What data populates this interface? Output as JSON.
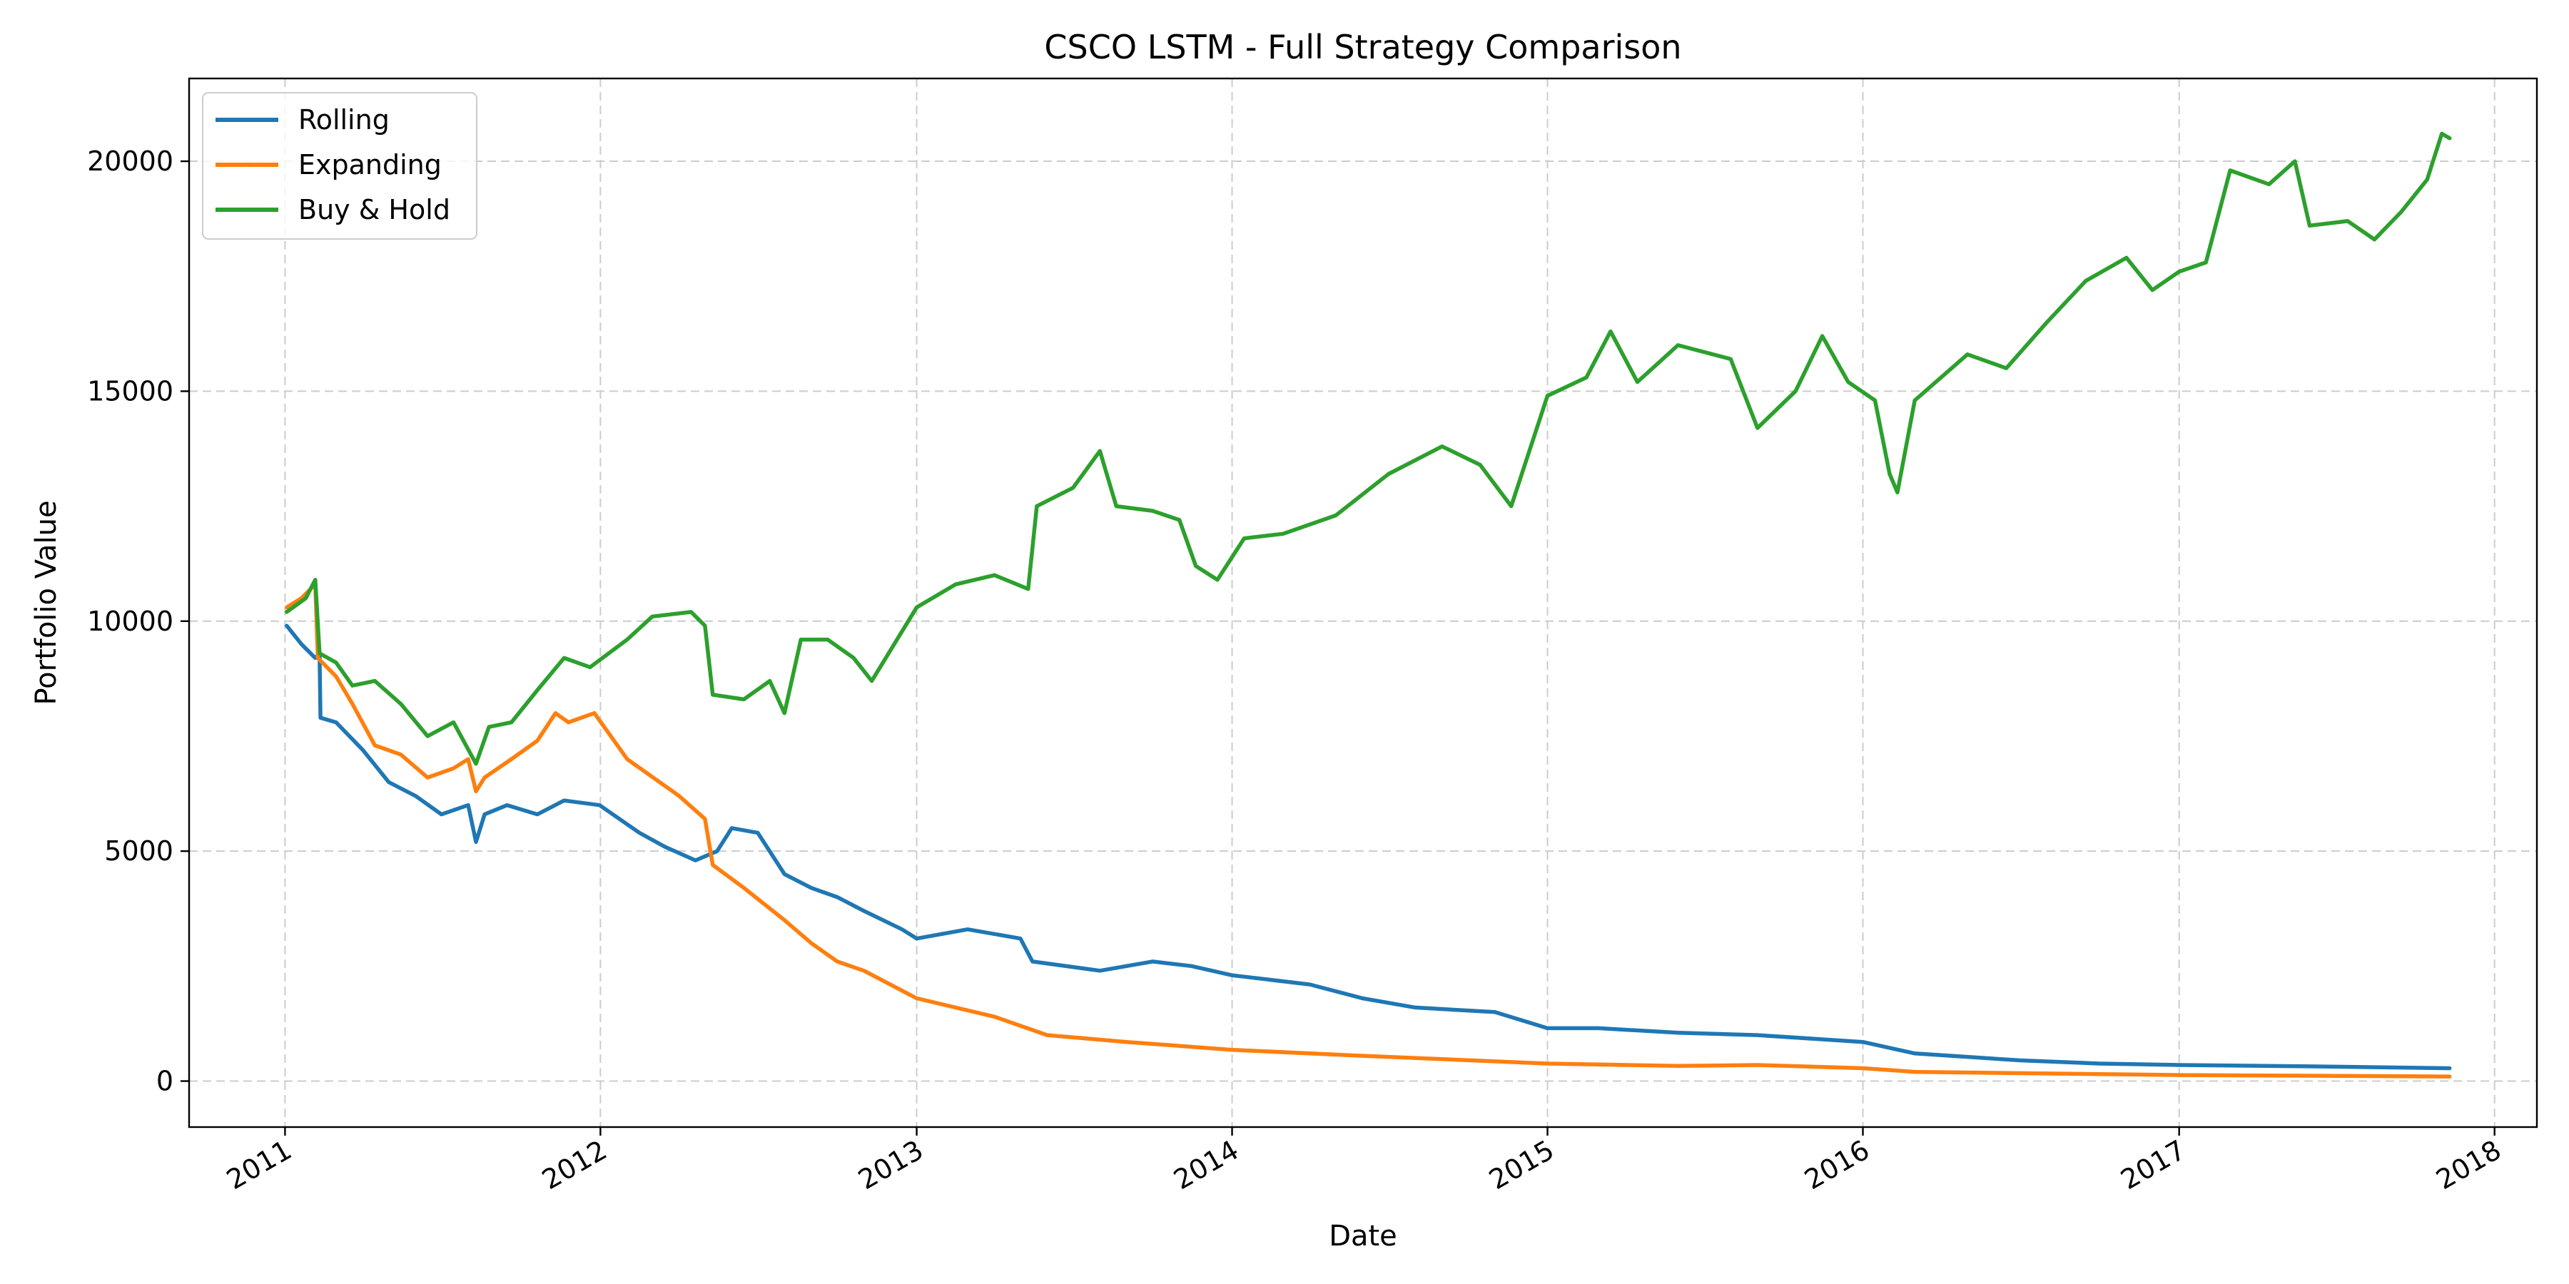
{
  "chart_data": {
    "type": "line",
    "title": "CSCO LSTM - Full Strategy Comparison",
    "xlabel": "Date",
    "ylabel": "Portfolio Value",
    "x_ticks": [
      "2011",
      "2012",
      "2013",
      "2014",
      "2015",
      "2016",
      "2017",
      "2018"
    ],
    "y_ticks": [
      0,
      5000,
      10000,
      15000,
      20000
    ],
    "xlim": [
      "2010-09-12",
      "2018-02-19"
    ],
    "ylim": [
      -1000,
      21800
    ],
    "grid": true,
    "legend_position": "upper-left",
    "series": [
      {
        "name": "Rolling",
        "color": "#1f77b4",
        "points": [
          [
            "2011-01-03",
            9900
          ],
          [
            "2011-01-20",
            9500
          ],
          [
            "2011-02-05",
            9200
          ],
          [
            "2011-02-10",
            9300
          ],
          [
            "2011-02-11",
            7900
          ],
          [
            "2011-03-01",
            7800
          ],
          [
            "2011-04-01",
            7200
          ],
          [
            "2011-05-01",
            6500
          ],
          [
            "2011-06-01",
            6200
          ],
          [
            "2011-07-01",
            5800
          ],
          [
            "2011-08-01",
            6000
          ],
          [
            "2011-08-10",
            5200
          ],
          [
            "2011-08-20",
            5800
          ],
          [
            "2011-09-15",
            6000
          ],
          [
            "2011-10-20",
            5800
          ],
          [
            "2011-11-20",
            6100
          ],
          [
            "2011-12-31",
            6000
          ],
          [
            "2012-02-15",
            5400
          ],
          [
            "2012-03-15",
            5100
          ],
          [
            "2012-04-20",
            4800
          ],
          [
            "2012-05-15",
            5000
          ],
          [
            "2012-06-01",
            5500
          ],
          [
            "2012-07-01",
            5400
          ],
          [
            "2012-08-01",
            4500
          ],
          [
            "2012-09-01",
            4200
          ],
          [
            "2012-10-01",
            4000
          ],
          [
            "2012-11-01",
            3700
          ],
          [
            "2012-12-15",
            3300
          ],
          [
            "2013-01-01",
            3100
          ],
          [
            "2013-03-01",
            3300
          ],
          [
            "2013-05-01",
            3100
          ],
          [
            "2013-05-15",
            2600
          ],
          [
            "2013-08-01",
            2400
          ],
          [
            "2013-10-01",
            2600
          ],
          [
            "2013-11-15",
            2500
          ],
          [
            "2014-01-01",
            2300
          ],
          [
            "2014-04-01",
            2100
          ],
          [
            "2014-06-01",
            1800
          ],
          [
            "2014-08-01",
            1600
          ],
          [
            "2014-11-01",
            1500
          ],
          [
            "2015-01-01",
            1150
          ],
          [
            "2015-03-01",
            1150
          ],
          [
            "2015-06-01",
            1050
          ],
          [
            "2015-09-01",
            1000
          ],
          [
            "2016-01-01",
            850
          ],
          [
            "2016-03-01",
            600
          ],
          [
            "2016-07-01",
            450
          ],
          [
            "2016-10-01",
            380
          ],
          [
            "2017-01-01",
            350
          ],
          [
            "2017-06-01",
            320
          ],
          [
            "2017-11-10",
            280
          ]
        ]
      },
      {
        "name": "Expanding",
        "color": "#ff7f0e",
        "points": [
          [
            "2011-01-03",
            10300
          ],
          [
            "2011-01-20",
            10500
          ],
          [
            "2011-02-05",
            10800
          ],
          [
            "2011-02-08",
            9200
          ],
          [
            "2011-03-01",
            8800
          ],
          [
            "2011-03-20",
            8200
          ],
          [
            "2011-04-15",
            7300
          ],
          [
            "2011-05-15",
            7100
          ],
          [
            "2011-06-15",
            6600
          ],
          [
            "2011-07-15",
            6800
          ],
          [
            "2011-08-01",
            7000
          ],
          [
            "2011-08-10",
            6300
          ],
          [
            "2011-08-20",
            6600
          ],
          [
            "2011-09-20",
            7000
          ],
          [
            "2011-10-20",
            7400
          ],
          [
            "2011-11-10",
            8000
          ],
          [
            "2011-11-25",
            7800
          ],
          [
            "2011-12-25",
            8000
          ],
          [
            "2012-02-01",
            7000
          ],
          [
            "2012-04-01",
            6200
          ],
          [
            "2012-05-01",
            5700
          ],
          [
            "2012-05-10",
            4700
          ],
          [
            "2012-06-15",
            4200
          ],
          [
            "2012-08-01",
            3500
          ],
          [
            "2012-09-01",
            3000
          ],
          [
            "2012-10-01",
            2600
          ],
          [
            "2012-11-01",
            2400
          ],
          [
            "2013-01-01",
            1800
          ],
          [
            "2013-04-01",
            1400
          ],
          [
            "2013-06-01",
            1000
          ],
          [
            "2013-09-01",
            850
          ],
          [
            "2014-01-01",
            680
          ],
          [
            "2014-06-01",
            550
          ],
          [
            "2015-01-01",
            380
          ],
          [
            "2015-06-01",
            330
          ],
          [
            "2015-09-01",
            350
          ],
          [
            "2016-01-01",
            280
          ],
          [
            "2016-03-01",
            200
          ],
          [
            "2017-01-01",
            130
          ],
          [
            "2017-11-10",
            100
          ]
        ]
      },
      {
        "name": "Buy & Hold",
        "color": "#2ca02c",
        "points": [
          [
            "2011-01-03",
            10200
          ],
          [
            "2011-01-25",
            10500
          ],
          [
            "2011-02-05",
            10900
          ],
          [
            "2011-02-10",
            9300
          ],
          [
            "2011-03-01",
            9100
          ],
          [
            "2011-03-20",
            8600
          ],
          [
            "2011-04-15",
            8700
          ],
          [
            "2011-05-15",
            8200
          ],
          [
            "2011-06-15",
            7500
          ],
          [
            "2011-07-15",
            7800
          ],
          [
            "2011-08-10",
            6900
          ],
          [
            "2011-08-25",
            7700
          ],
          [
            "2011-09-20",
            7800
          ],
          [
            "2011-10-20",
            8500
          ],
          [
            "2011-11-20",
            9200
          ],
          [
            "2011-12-20",
            9000
          ],
          [
            "2012-02-01",
            9600
          ],
          [
            "2012-03-01",
            10100
          ],
          [
            "2012-04-15",
            10200
          ],
          [
            "2012-05-01",
            9900
          ],
          [
            "2012-05-10",
            8400
          ],
          [
            "2012-06-15",
            8300
          ],
          [
            "2012-07-15",
            8700
          ],
          [
            "2012-08-01",
            8000
          ],
          [
            "2012-08-20",
            9600
          ],
          [
            "2012-09-20",
            9600
          ],
          [
            "2012-10-20",
            9200
          ],
          [
            "2012-11-10",
            8700
          ],
          [
            "2013-01-01",
            10300
          ],
          [
            "2013-02-15",
            10800
          ],
          [
            "2013-04-01",
            11000
          ],
          [
            "2013-05-10",
            10700
          ],
          [
            "2013-05-20",
            12500
          ],
          [
            "2013-07-01",
            12900
          ],
          [
            "2013-08-01",
            13700
          ],
          [
            "2013-08-20",
            12500
          ],
          [
            "2013-10-01",
            12400
          ],
          [
            "2013-11-01",
            12200
          ],
          [
            "2013-11-20",
            11200
          ],
          [
            "2013-12-15",
            10900
          ],
          [
            "2014-01-15",
            11800
          ],
          [
            "2014-03-01",
            11900
          ],
          [
            "2014-05-01",
            12300
          ],
          [
            "2014-07-01",
            13200
          ],
          [
            "2014-09-01",
            13800
          ],
          [
            "2014-10-15",
            13400
          ],
          [
            "2014-11-20",
            12500
          ],
          [
            "2015-01-01",
            14900
          ],
          [
            "2015-02-15",
            15300
          ],
          [
            "2015-03-15",
            16300
          ],
          [
            "2015-04-15",
            15200
          ],
          [
            "2015-06-01",
            16000
          ],
          [
            "2015-08-01",
            15700
          ],
          [
            "2015-09-01",
            14200
          ],
          [
            "2015-10-15",
            15000
          ],
          [
            "2015-11-15",
            16200
          ],
          [
            "2015-12-15",
            15200
          ],
          [
            "2016-01-15",
            14800
          ],
          [
            "2016-02-01",
            13200
          ],
          [
            "2016-02-10",
            12800
          ],
          [
            "2016-03-01",
            14800
          ],
          [
            "2016-05-01",
            15800
          ],
          [
            "2016-06-15",
            15500
          ],
          [
            "2016-08-01",
            16500
          ],
          [
            "2016-09-15",
            17400
          ],
          [
            "2016-11-01",
            17900
          ],
          [
            "2016-12-01",
            17200
          ],
          [
            "2017-01-01",
            17600
          ],
          [
            "2017-02-01",
            17800
          ],
          [
            "2017-03-01",
            19800
          ],
          [
            "2017-04-15",
            19500
          ],
          [
            "2017-05-15",
            20000
          ],
          [
            "2017-06-01",
            18600
          ],
          [
            "2017-07-15",
            18700
          ],
          [
            "2017-08-15",
            18300
          ],
          [
            "2017-09-15",
            18900
          ],
          [
            "2017-10-15",
            19600
          ],
          [
            "2017-11-01",
            20600
          ],
          [
            "2017-11-10",
            20500
          ]
        ]
      }
    ]
  }
}
